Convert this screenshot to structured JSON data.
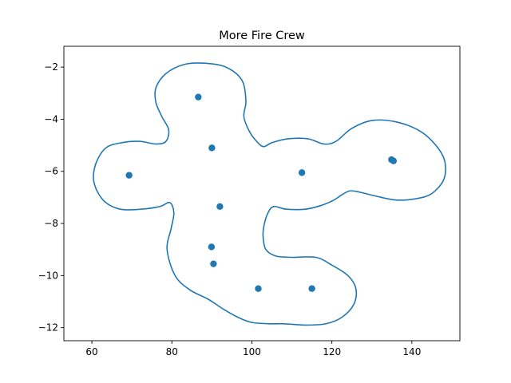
{
  "chart_data": {
    "type": "scatter",
    "title": "More Fire Crew",
    "xlabel": "",
    "ylabel": "",
    "xlim": [
      53,
      152
    ],
    "ylim": [
      -12.5,
      -1.2
    ],
    "xticks": [
      60,
      80,
      100,
      120,
      140
    ],
    "yticks": [
      -2,
      -4,
      -6,
      -8,
      -10,
      -12
    ],
    "xtick_labels": [
      "60",
      "80",
      "100",
      "120",
      "140"
    ],
    "ytick_labels": [
      "−2",
      "−4",
      "−6",
      "−8",
      "−10",
      "−12"
    ],
    "grid": false,
    "color": "#1f77b4",
    "points": [
      {
        "x": 86.6,
        "y": -3.15
      },
      {
        "x": 90.0,
        "y": -5.1
      },
      {
        "x": 69.3,
        "y": -6.15
      },
      {
        "x": 112.5,
        "y": -6.05
      },
      {
        "x": 134.9,
        "y": -5.55
      },
      {
        "x": 135.4,
        "y": -5.6
      },
      {
        "x": 92.0,
        "y": -7.35
      },
      {
        "x": 89.9,
        "y": -8.9
      },
      {
        "x": 90.4,
        "y": -9.55
      },
      {
        "x": 101.6,
        "y": -10.5
      },
      {
        "x": 115.0,
        "y": -10.5
      }
    ],
    "boundary": [
      [
        88.2,
        -1.85
      ],
      [
        93.5,
        -2.0
      ],
      [
        97.5,
        -2.5
      ],
      [
        98.5,
        -3.3
      ],
      [
        98.0,
        -3.9
      ],
      [
        99.5,
        -4.5
      ],
      [
        101.5,
        -4.9
      ],
      [
        103.0,
        -5.05
      ],
      [
        105.0,
        -4.9
      ],
      [
        109.0,
        -4.75
      ],
      [
        114.0,
        -4.75
      ],
      [
        118.0,
        -4.95
      ],
      [
        121.0,
        -4.85
      ],
      [
        125.0,
        -4.35
      ],
      [
        130.0,
        -4.05
      ],
      [
        136.0,
        -4.1
      ],
      [
        142.0,
        -4.45
      ],
      [
        146.0,
        -5.0
      ],
      [
        148.2,
        -5.6
      ],
      [
        148.0,
        -6.3
      ],
      [
        145.0,
        -6.85
      ],
      [
        141.0,
        -7.05
      ],
      [
        136.0,
        -7.1
      ],
      [
        131.0,
        -6.95
      ],
      [
        127.0,
        -6.8
      ],
      [
        124.5,
        -6.75
      ],
      [
        122.5,
        -6.9
      ],
      [
        120.5,
        -7.1
      ],
      [
        117.5,
        -7.3
      ],
      [
        113.5,
        -7.45
      ],
      [
        108.5,
        -7.45
      ],
      [
        105.5,
        -7.35
      ],
      [
        104.0,
        -7.6
      ],
      [
        103.0,
        -8.1
      ],
      [
        102.8,
        -8.5
      ],
      [
        103.5,
        -9.0
      ],
      [
        106.0,
        -9.25
      ],
      [
        110.0,
        -9.3
      ],
      [
        116.0,
        -9.3
      ],
      [
        120.0,
        -9.6
      ],
      [
        124.0,
        -10.0
      ],
      [
        126.0,
        -10.5
      ],
      [
        125.5,
        -11.1
      ],
      [
        122.5,
        -11.6
      ],
      [
        118.5,
        -11.85
      ],
      [
        113.5,
        -11.9
      ],
      [
        108.0,
        -11.85
      ],
      [
        104.5,
        -11.85
      ],
      [
        100.0,
        -11.8
      ],
      [
        96.5,
        -11.6
      ],
      [
        93.0,
        -11.3
      ],
      [
        89.0,
        -10.9
      ],
      [
        84.5,
        -10.55
      ],
      [
        80.8,
        -10.0
      ],
      [
        78.8,
        -9.0
      ],
      [
        79.8,
        -8.2
      ],
      [
        80.5,
        -7.6
      ],
      [
        79.5,
        -7.2
      ],
      [
        77.0,
        -7.35
      ],
      [
        72.5,
        -7.45
      ],
      [
        67.0,
        -7.45
      ],
      [
        62.8,
        -7.1
      ],
      [
        60.5,
        -6.4
      ],
      [
        61.0,
        -5.7
      ],
      [
        63.5,
        -5.1
      ],
      [
        67.5,
        -4.9
      ],
      [
        72.0,
        -4.85
      ],
      [
        76.0,
        -4.95
      ],
      [
        78.5,
        -4.85
      ],
      [
        79.2,
        -4.4
      ],
      [
        77.5,
        -3.9
      ],
      [
        76.0,
        -3.35
      ],
      [
        76.0,
        -2.8
      ],
      [
        78.5,
        -2.25
      ],
      [
        83.0,
        -1.9
      ]
    ]
  }
}
